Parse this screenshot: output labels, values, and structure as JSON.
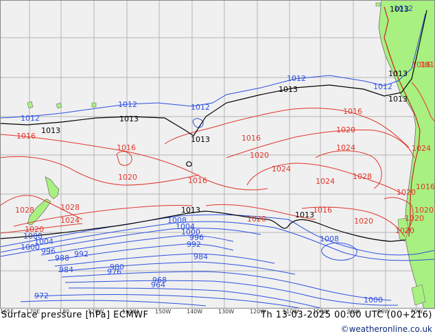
{
  "footer": {
    "title": "Surface pressure [hPa] ECMWF",
    "valid_time": "Th 13-03-2025 00:00 UTC (00+216)",
    "credit": "©weatheronline.co.uk"
  },
  "longitude_ticks": [
    "165E",
    "170E",
    "180",
    "170W",
    "160W",
    "150W",
    "140W",
    "130W",
    "120W",
    "110W",
    "100W",
    "90W",
    "80W",
    "70W"
  ],
  "isobar_labels": {
    "black": [
      "1013",
      "1013",
      "1013",
      "1013",
      "1013",
      "1013",
      "1013",
      "1013",
      "1013"
    ],
    "blue": [
      "1012",
      "1012",
      "1012",
      "1012",
      "1012",
      "1012",
      "1008",
      "1004",
      "1000",
      "996",
      "992",
      "984",
      "988",
      "992",
      "996",
      "1000",
      "1004",
      "1008",
      "980",
      "976",
      "984",
      "968",
      "964",
      "972",
      "1008",
      "1000"
    ],
    "red": [
      "1016",
      "1016",
      "1016",
      "1016",
      "1016",
      "1016",
      "1016",
      "1016",
      "1020",
      "1020",
      "1020",
      "1020",
      "1020",
      "1020",
      "1020",
      "1020",
      "1024",
      "1024",
      "1024",
      "1024",
      "1024",
      "1028",
      "1028",
      "1028",
      "1020",
      "1020",
      "1016"
    ]
  },
  "colors": {
    "ocean": "#f0f0f0",
    "land": "#a8f080",
    "grid": "#b4b4b4",
    "low_isobar": "#2b4fe0",
    "high_isobar": "#e0352b",
    "mean_isobar": "#000000"
  }
}
